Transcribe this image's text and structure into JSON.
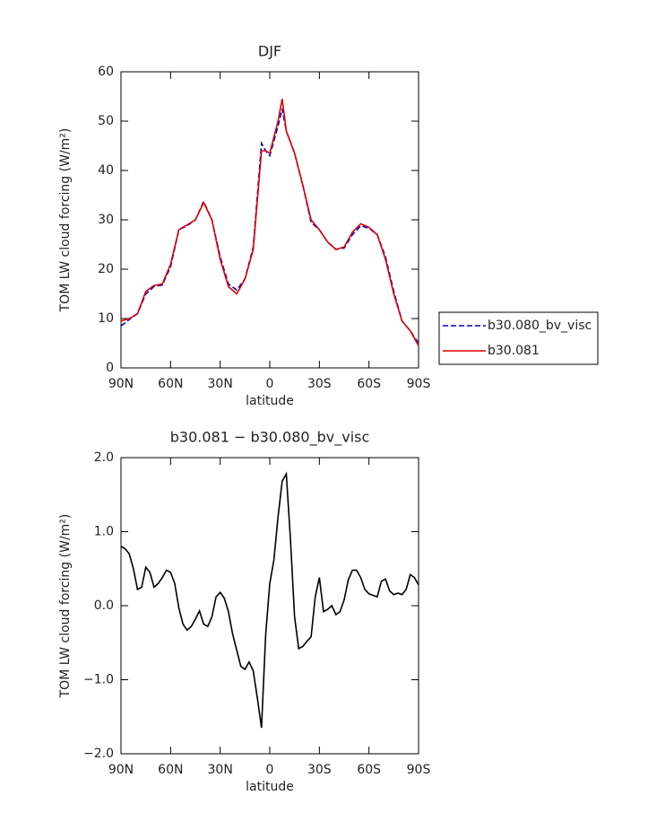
{
  "chart_data": [
    {
      "type": "line",
      "title": "DJF",
      "x_label": "latitude",
      "y_label": "TOM LW cloud forcing (W/m²)",
      "x": [
        90,
        85,
        80,
        75,
        70,
        65,
        60,
        55,
        50,
        45,
        40,
        35,
        30,
        25,
        20,
        15,
        10,
        5,
        2.5,
        0,
        -5,
        -7.5,
        -10,
        -15,
        -20,
        -25,
        -30,
        -35,
        -40,
        -45,
        -50,
        -55,
        -60,
        -65,
        -70,
        -75,
        -80,
        -85,
        -90
      ],
      "series": [
        {
          "name": "b30.080_bv_visc",
          "color": "#0000cc",
          "line_style": "dashed",
          "values": [
            8.5,
            9.8,
            11,
            15,
            16.5,
            16.8,
            20.5,
            28,
            28.8,
            30,
            33.7,
            30,
            22.5,
            17,
            15.8,
            18,
            24.5,
            45.5,
            44,
            43,
            49,
            52.5,
            48,
            43.5,
            37,
            29.5,
            28,
            25.5,
            24,
            24.3,
            27,
            28.8,
            28.3,
            27,
            22.5,
            15.5,
            9.5,
            7.5,
            5
          ]
        },
        {
          "name": "b30.081",
          "color": "#dd0000",
          "line_style": "solid",
          "values": [
            9.5,
            10,
            11,
            15.5,
            16.7,
            17,
            21,
            28,
            29,
            30,
            33.5,
            30,
            22,
            16.5,
            15,
            18,
            24,
            44,
            44,
            43.5,
            50,
            54.5,
            48,
            43.5,
            37,
            30,
            28,
            25.5,
            24,
            24.5,
            27.5,
            29.2,
            28.5,
            27,
            22,
            15,
            9.5,
            7.5,
            4.5
          ]
        }
      ],
      "xlim": [
        90,
        -90
      ],
      "xticks": [
        {
          "value": 90,
          "label": "90N"
        },
        {
          "value": 60,
          "label": "60N"
        },
        {
          "value": 30,
          "label": "30N"
        },
        0,
        {
          "value": -30,
          "label": "30S"
        },
        {
          "value": -60,
          "label": "60S"
        },
        {
          "value": -90,
          "label": "90S"
        }
      ],
      "ylim": [
        0,
        60
      ],
      "yticks": [
        0,
        10,
        20,
        30,
        40,
        50,
        60
      ],
      "legend": "right"
    },
    {
      "type": "line",
      "title": "b30.081 − b30.080_bv_visc",
      "x_label": "latitude",
      "y_label": "TOM LW cloud forcing (W/m²)",
      "x": [
        90,
        87.5,
        85,
        82.5,
        80,
        77.5,
        75,
        72.5,
        70,
        67.5,
        65,
        62.5,
        60,
        57.5,
        55,
        52.5,
        50,
        47.5,
        45,
        42.5,
        40,
        37.5,
        35,
        32.5,
        30,
        27.5,
        25,
        22.5,
        20,
        17.5,
        15,
        12.5,
        10,
        7.5,
        5,
        2.5,
        0,
        -2.5,
        -5,
        -7.5,
        -10,
        -12.5,
        -15,
        -17.5,
        -20,
        -22.5,
        -25,
        -27.5,
        -30,
        -32.5,
        -35,
        -37.5,
        -40,
        -42.5,
        -45,
        -47.5,
        -50,
        -52.5,
        -55,
        -57.5,
        -60,
        -62.5,
        -65,
        -67.5,
        -70,
        -72.5,
        -75,
        -77.5,
        -80,
        -82.5,
        -85,
        -87.5,
        -90
      ],
      "series": [
        {
          "name": "b30.081 − b30.080_bv_visc",
          "color": "#000000",
          "line_style": "solid",
          "values": [
            0.8,
            0.77,
            0.7,
            0.5,
            0.22,
            0.25,
            0.52,
            0.45,
            0.25,
            0.3,
            0.38,
            0.48,
            0.45,
            0.3,
            -0.03,
            -0.25,
            -0.33,
            -0.28,
            -0.18,
            -0.07,
            -0.25,
            -0.28,
            -0.15,
            0.12,
            0.18,
            0.1,
            -0.08,
            -0.38,
            -0.6,
            -0.82,
            -0.86,
            -0.76,
            -0.88,
            -1.25,
            -1.65,
            -0.4,
            0.3,
            0.62,
            1.2,
            1.68,
            1.78,
            0.9,
            -0.15,
            -0.58,
            -0.55,
            -0.48,
            -0.42,
            0.12,
            0.38,
            -0.08,
            -0.05,
            0,
            -0.12,
            -0.08,
            0.08,
            0.35,
            0.48,
            0.48,
            0.38,
            0.22,
            0.16,
            0.14,
            0.12,
            0.33,
            0.36,
            0.2,
            0.15,
            0.17,
            0.15,
            0.22,
            0.42,
            0.38,
            0.28
          ]
        }
      ],
      "xlim": [
        90,
        -90
      ],
      "xticks": [
        {
          "value": 90,
          "label": "90N"
        },
        {
          "value": 60,
          "label": "60N"
        },
        {
          "value": 30,
          "label": "30N"
        },
        0,
        {
          "value": -30,
          "label": "30S"
        },
        {
          "value": -60,
          "label": "60S"
        },
        {
          "value": -90,
          "label": "90S"
        }
      ],
      "ylim": [
        -2,
        2
      ],
      "yticks": [
        {
          "value": -2,
          "label": "−2.0"
        },
        {
          "value": -1,
          "label": "−1.0"
        },
        {
          "value": 0,
          "label": "0.0"
        },
        {
          "value": 1,
          "label": "1.0"
        },
        {
          "value": 2,
          "label": "2.0"
        }
      ]
    }
  ]
}
